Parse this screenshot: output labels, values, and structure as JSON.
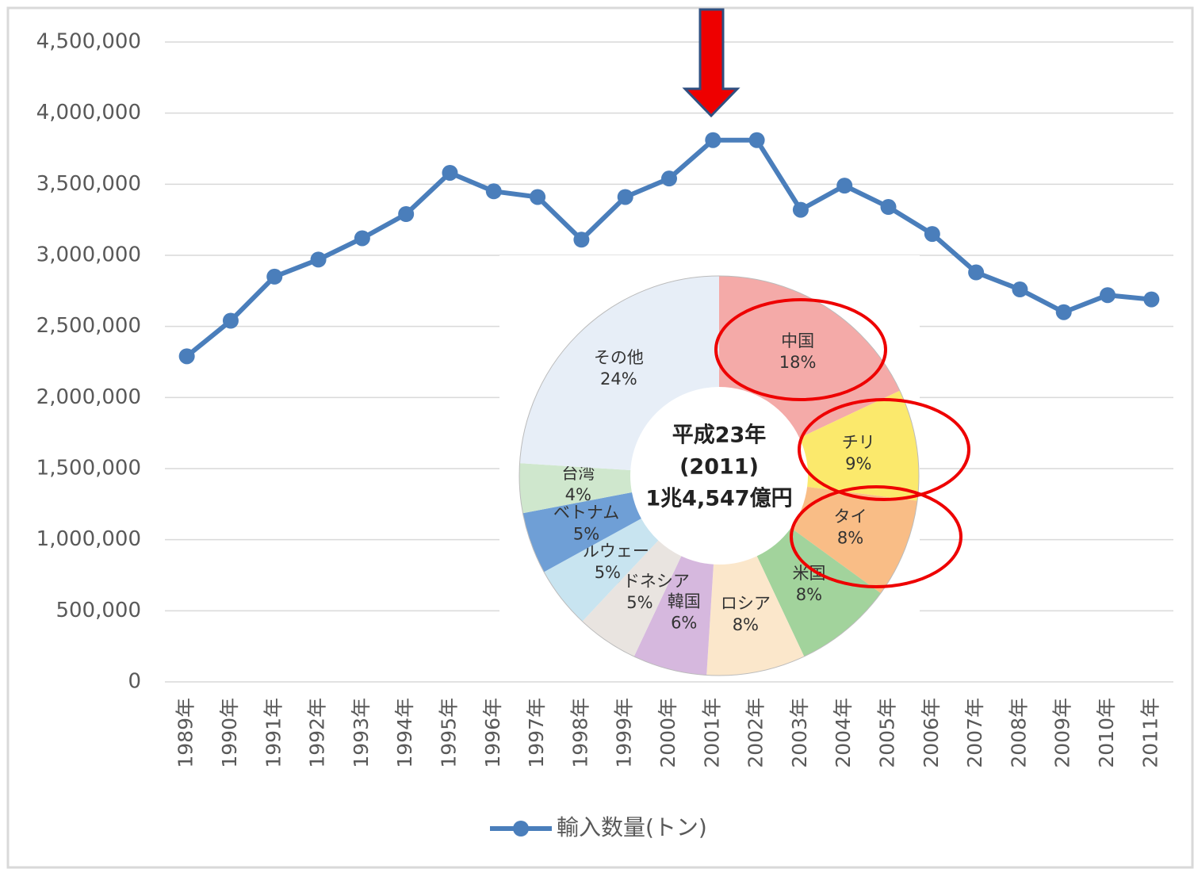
{
  "chart_data": [
    {
      "type": "line",
      "categories": [
        "1989年",
        "1990年",
        "1991年",
        "1992年",
        "1993年",
        "1994年",
        "1995年",
        "1996年",
        "1997年",
        "1998年",
        "1999年",
        "2000年",
        "2001年",
        "2002年",
        "2003年",
        "2004年",
        "2005年",
        "2006年",
        "2007年",
        "2008年",
        "2009年",
        "2010年",
        "2011年"
      ],
      "series": [
        {
          "name": "輸入数量(トン)",
          "color": "#4a7ebb",
          "values": [
            2290000,
            2540000,
            2850000,
            2970000,
            3120000,
            3290000,
            3580000,
            3450000,
            3410000,
            3110000,
            3410000,
            3540000,
            3810000,
            3810000,
            3320000,
            3490000,
            3340000,
            3150000,
            2880000,
            2760000,
            2600000,
            2720000,
            2690000
          ]
        }
      ],
      "ylim": [
        0,
        4500000
      ],
      "yticks": [
        0,
        {
          "value": 500000,
          "label": "500,000"
        },
        {
          "value": 1000000,
          "label": "1,000,000"
        },
        {
          "value": 1500000,
          "label": "1,500,000"
        },
        {
          "value": 2000000,
          "label": "2,000,000"
        },
        {
          "value": 2500000,
          "label": "2,500,000"
        },
        {
          "value": 3000000,
          "label": "3,000,000"
        },
        {
          "value": 3500000,
          "label": "3,500,000"
        },
        {
          "value": 4000000,
          "label": "4,000,000"
        },
        {
          "value": 4500000,
          "label": "4,500,000"
        }
      ],
      "grid": true,
      "legend": "bottom"
    },
    {
      "type": "pie",
      "categories": [
        "中国",
        "チリ",
        "タイ",
        "米国",
        "ロシア",
        "韓国",
        "インドネシア",
        "ノルウェー",
        "ベトナム",
        "台湾",
        "その他"
      ],
      "values": [
        18,
        9,
        8,
        8,
        8,
        6,
        5,
        5,
        5,
        4,
        24
      ],
      "value_labels": [
        "18%",
        "9%",
        "8%",
        "8%",
        "8%",
        "6%",
        "5%",
        "5%",
        "5%",
        "4%",
        "24%"
      ],
      "colors": [
        "#f4aaa8",
        "#fbe96c",
        "#f9bd86",
        "#a2d39c",
        "#fbe7cb",
        "#d6b8de",
        "#e9e4e0",
        "#c8e4f0",
        "#6f9fd6",
        "#cfe7cd",
        "#e7eef7"
      ],
      "center_text": [
        "平成23年",
        "(2011)",
        "1兆4,547億円"
      ]
    }
  ]
}
